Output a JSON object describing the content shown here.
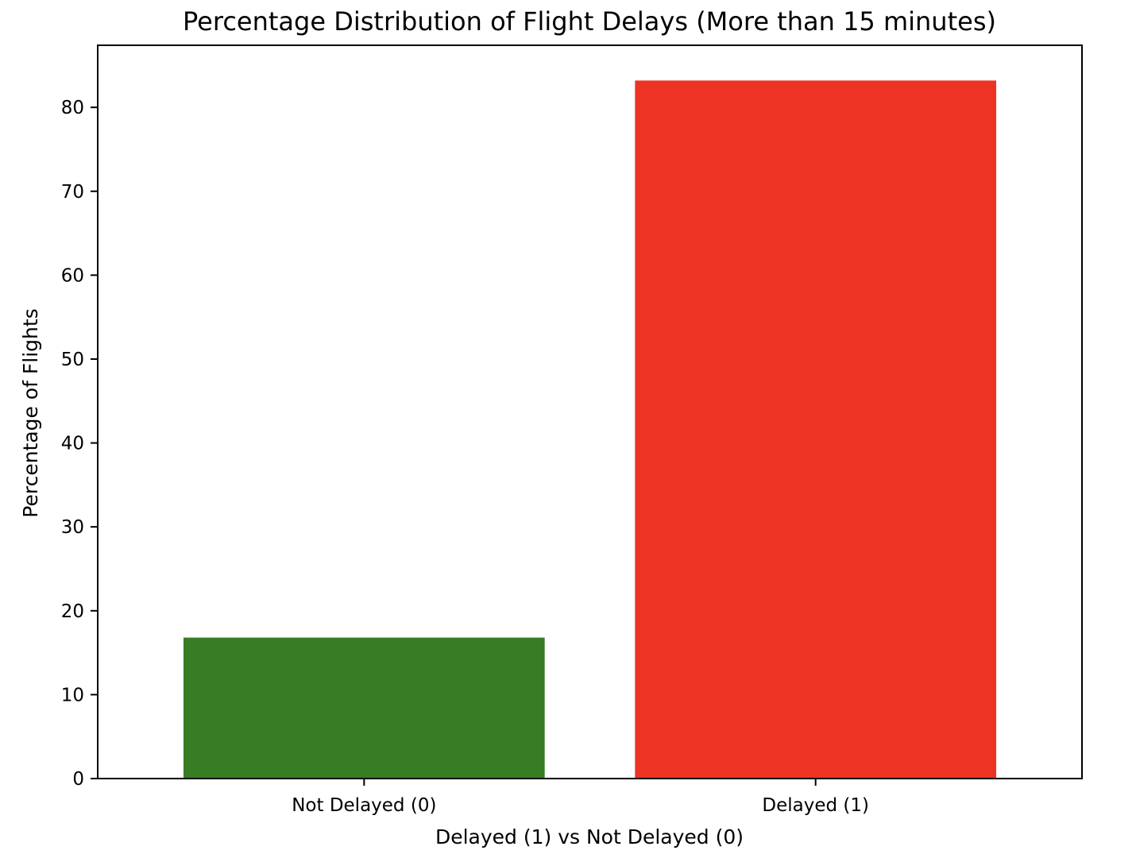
{
  "chart_data": {
    "type": "bar",
    "title": "Percentage Distribution of Flight Delays (More than 15 minutes)",
    "xlabel": "Delayed (1) vs Not Delayed (0)",
    "ylabel": "Percentage of Flights",
    "categories": [
      "Not Delayed (0)",
      "Delayed (1)"
    ],
    "values": [
      16.8,
      83.2
    ],
    "colors": [
      "#367d23",
      "#ec3324"
    ],
    "ylim": [
      0,
      87.4
    ],
    "yticks": [
      0,
      10,
      20,
      30,
      40,
      50,
      60,
      70,
      80
    ],
    "grid": false,
    "legend": false
  }
}
